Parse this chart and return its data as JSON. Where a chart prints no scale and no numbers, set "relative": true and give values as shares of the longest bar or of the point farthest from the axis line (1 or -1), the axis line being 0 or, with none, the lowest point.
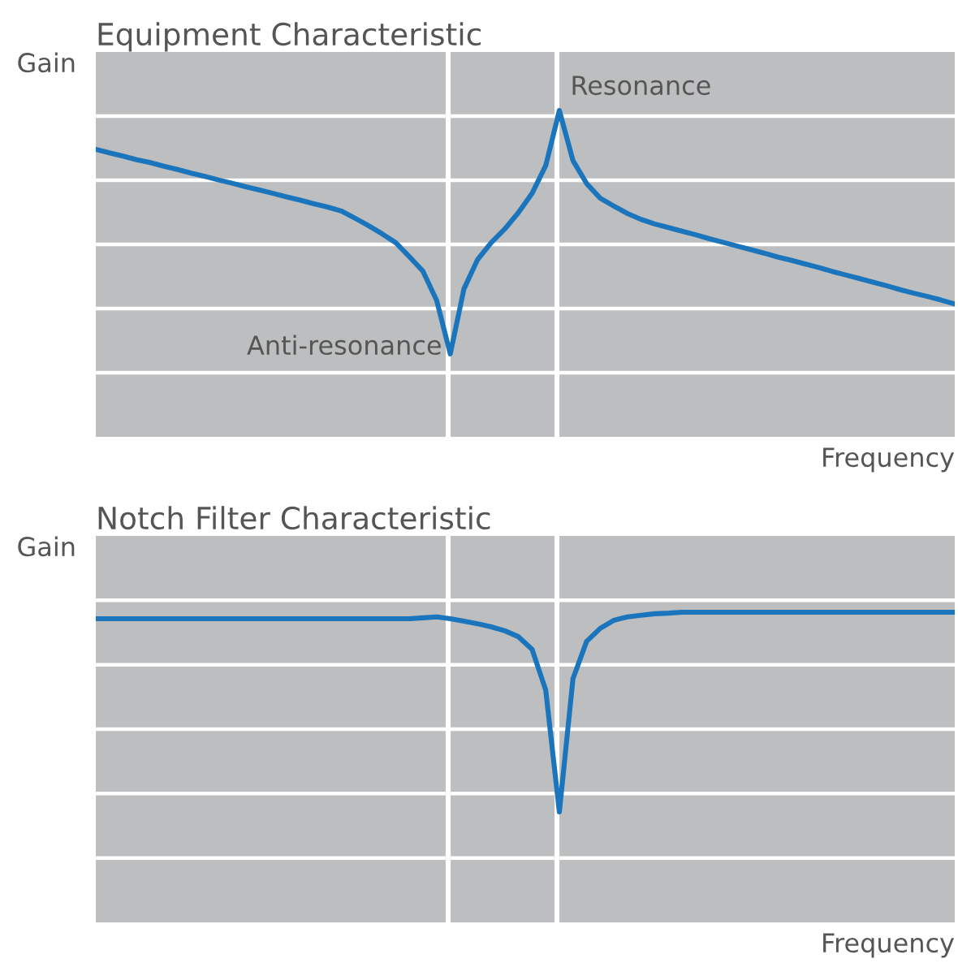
{
  "chart_data": [
    {
      "type": "line",
      "title": "Equipment Characteristic",
      "ylabel": "Gain",
      "xlabel": "Frequency",
      "relative": true,
      "grid": true,
      "categories": [
        null,
        null,
        null,
        null,
        null,
        null,
        null,
        null,
        null,
        null,
        null,
        null,
        null,
        null,
        null,
        null,
        null,
        null,
        null,
        null,
        null,
        null,
        null,
        null,
        null,
        null,
        null,
        null,
        null,
        null,
        null,
        null,
        null,
        null,
        null,
        null,
        null,
        null,
        null,
        null,
        null,
        null,
        null,
        null,
        null,
        null,
        null,
        null,
        null,
        null,
        null,
        null,
        null,
        null,
        null,
        null,
        null,
        null,
        null,
        null,
        null,
        null,
        null,
        null
      ],
      "series": [
        {
          "color": "#1a75bc",
          "values": [
            0.881,
            0.87,
            0.86,
            0.849,
            0.84,
            0.829,
            0.819,
            0.808,
            0.798,
            0.787,
            0.777,
            0.766,
            0.756,
            0.746,
            0.735,
            0.725,
            0.714,
            0.704,
            0.692,
            0.67,
            0.647,
            0.622,
            0.595,
            0.552,
            0.507,
            0.418,
            0.254,
            0.453,
            0.543,
            0.595,
            0.637,
            0.687,
            0.746,
            0.831,
            1,
            0.846,
            0.776,
            0.731,
            0.707,
            0.684,
            0.666,
            0.652,
            0.641,
            0.63,
            0.619,
            0.607,
            0.596,
            0.585,
            0.574,
            0.563,
            0.551,
            0.541,
            0.53,
            0.519,
            0.507,
            0.496,
            0.485,
            0.474,
            0.463,
            0.451,
            0.44,
            0.43,
            0.419,
            0.407
          ]
        }
      ],
      "annotations": [
        "Anti-resonance",
        "Resonance"
      ]
    },
    {
      "type": "line",
      "title": "Notch Filter Characteristic",
      "ylabel": "Gain",
      "xlabel": "Frequency",
      "relative": true,
      "grid": true,
      "categories": [
        null,
        null,
        null,
        null,
        null,
        null,
        null,
        null,
        null,
        null,
        null,
        null,
        null,
        null,
        null,
        null,
        null,
        null,
        null,
        null,
        null,
        null,
        null,
        null,
        null,
        null,
        null,
        null,
        null,
        null,
        null,
        null,
        null,
        null,
        null,
        null,
        null,
        null,
        null,
        null,
        null,
        null,
        null,
        null,
        null,
        null,
        null,
        null,
        null,
        null,
        null,
        null,
        null,
        null,
        null,
        null,
        null,
        null,
        null,
        null,
        null,
        null,
        null,
        null
      ],
      "series": [
        {
          "color": "#1a75bc",
          "values": [
            0.979,
            0.979,
            0.979,
            0.979,
            0.979,
            0.979,
            0.979,
            0.979,
            0.979,
            0.979,
            0.979,
            0.979,
            0.979,
            0.979,
            0.979,
            0.979,
            0.979,
            0.979,
            0.979,
            0.979,
            0.979,
            0.979,
            0.979,
            0.979,
            0.982,
            0.985,
            0.979,
            0.971,
            0.963,
            0.953,
            0.94,
            0.921,
            0.88,
            0.749,
            0.356,
            0.786,
            0.906,
            0.948,
            0.974,
            0.985,
            0.99,
            0.995,
            0.997,
            1,
            1,
            1,
            1,
            1,
            1,
            1,
            1,
            1,
            1,
            1,
            1,
            1,
            1,
            1,
            1,
            1,
            1,
            1,
            1,
            1
          ]
        }
      ]
    }
  ]
}
